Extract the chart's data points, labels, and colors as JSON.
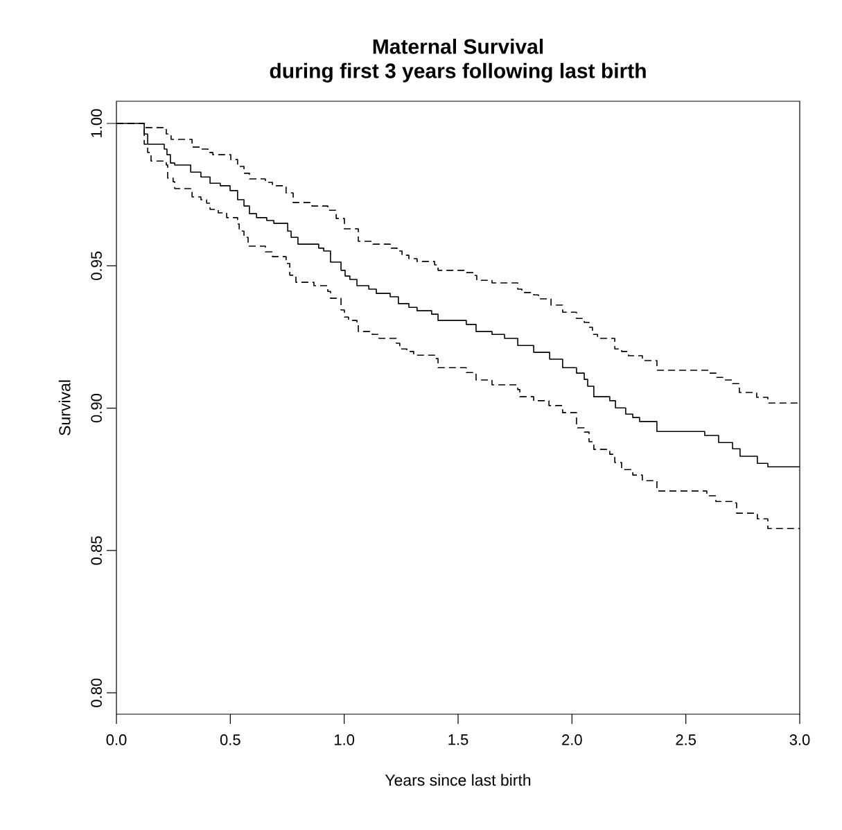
{
  "chart_data": {
    "type": "step",
    "title": "Maternal Survival",
    "subtitle": "during first 3 years following last birth",
    "xlabel": "Years since last birth",
    "ylabel": "Survival",
    "xlim": [
      0,
      3
    ],
    "ylim": [
      0.7925,
      1.0078
    ],
    "xticks": [
      {
        "value": 0,
        "label": "0.0"
      },
      {
        "value": 0.5,
        "label": "0.5"
      },
      {
        "value": 1,
        "label": "1.0"
      },
      {
        "value": 1.5,
        "label": "1.5"
      },
      {
        "value": 2,
        "label": "2.0"
      },
      {
        "value": 2.5,
        "label": "2.5"
      },
      {
        "value": 3,
        "label": "3.0"
      }
    ],
    "yticks": [
      {
        "value": 0.8,
        "label": "0.80"
      },
      {
        "value": 0.85,
        "label": "0.85"
      },
      {
        "value": 0.9,
        "label": "0.90"
      },
      {
        "value": 0.95,
        "label": "0.95"
      },
      {
        "value": 1,
        "label": "1.00"
      }
    ],
    "series": [
      {
        "color": "#000000",
        "line_style": "solid",
        "x": [
          0,
          0.122,
          0.137,
          0.21,
          0.222,
          0.237,
          0.256,
          0.326,
          0.371,
          0.411,
          0.456,
          0.499,
          0.532,
          0.56,
          0.584,
          0.615,
          0.66,
          0.691,
          0.752,
          0.767,
          0.797,
          0.888,
          0.91,
          0.94,
          0.986,
          1.004,
          1.025,
          1.056,
          1.108,
          1.141,
          1.202,
          1.238,
          1.284,
          1.32,
          1.384,
          1.412,
          1.536,
          1.579,
          1.649,
          1.704,
          1.762,
          1.832,
          1.902,
          1.959,
          2.02,
          2.054,
          2.069,
          2.096,
          2.166,
          2.191,
          2.236,
          2.267,
          2.297,
          2.373,
          2.583,
          2.644,
          2.705,
          2.738,
          2.814,
          2.86,
          3.0
        ],
        "values": [
          1.0,
          0.9963,
          0.9927,
          0.991,
          0.989,
          0.9861,
          0.9854,
          0.9829,
          0.9812,
          0.979,
          0.9781,
          0.9764,
          0.9732,
          0.971,
          0.9683,
          0.9669,
          0.9659,
          0.9649,
          0.9622,
          0.96,
          0.9576,
          0.9562,
          0.9552,
          0.9513,
          0.9484,
          0.9464,
          0.9452,
          0.943,
          0.9418,
          0.9403,
          0.9391,
          0.9367,
          0.9354,
          0.9342,
          0.933,
          0.9308,
          0.9294,
          0.9269,
          0.9259,
          0.9245,
          0.922,
          0.9196,
          0.9172,
          0.9142,
          0.9123,
          0.9101,
          0.9077,
          0.904,
          0.9026,
          0.9001,
          0.8979,
          0.8967,
          0.8953,
          0.8918,
          0.8904,
          0.8879,
          0.8857,
          0.8831,
          0.8806,
          0.8794,
          0.8794
        ]
      },
      {
        "color": "#000000",
        "line_style": "dashed",
        "x": [
          0,
          0.122,
          0.219,
          0.24,
          0.332,
          0.371,
          0.402,
          0.423,
          0.502,
          0.532,
          0.56,
          0.584,
          0.654,
          0.685,
          0.745,
          0.776,
          0.858,
          0.928,
          0.965,
          1.001,
          1.062,
          1.126,
          1.202,
          1.232,
          1.254,
          1.284,
          1.32,
          1.397,
          1.412,
          1.536,
          1.567,
          1.582,
          1.649,
          1.762,
          1.78,
          1.832,
          1.853,
          1.908,
          1.959,
          2.02,
          2.054,
          2.075,
          2.09,
          2.112,
          2.188,
          2.218,
          2.248,
          2.309,
          2.373,
          2.601,
          2.632,
          2.662,
          2.705,
          2.735,
          2.811,
          2.86,
          3.0
        ],
        "values": [
          1.0,
          0.9985,
          0.9963,
          0.9944,
          0.9917,
          0.991,
          0.9898,
          0.989,
          0.9873,
          0.9849,
          0.9825,
          0.9805,
          0.9793,
          0.9781,
          0.9756,
          0.9722,
          0.971,
          0.9695,
          0.9666,
          0.963,
          0.9586,
          0.9576,
          0.9562,
          0.9552,
          0.9537,
          0.9525,
          0.9515,
          0.9503,
          0.9484,
          0.9476,
          0.9466,
          0.9449,
          0.944,
          0.9418,
          0.9406,
          0.9398,
          0.9384,
          0.9362,
          0.9337,
          0.9315,
          0.9301,
          0.9284,
          0.9259,
          0.9245,
          0.9208,
          0.9199,
          0.9184,
          0.9167,
          0.9133,
          0.9123,
          0.9108,
          0.9099,
          0.9086,
          0.9055,
          0.9038,
          0.9018,
          0.9018
        ]
      },
      {
        "color": "#000000",
        "line_style": "dashed",
        "x": [
          0,
          0.122,
          0.137,
          0.152,
          0.219,
          0.225,
          0.249,
          0.256,
          0.326,
          0.332,
          0.371,
          0.396,
          0.411,
          0.447,
          0.484,
          0.532,
          0.539,
          0.56,
          0.578,
          0.654,
          0.685,
          0.745,
          0.761,
          0.788,
          0.867,
          0.928,
          0.94,
          0.986,
          1.001,
          1.019,
          1.056,
          1.062,
          1.123,
          1.153,
          1.229,
          1.244,
          1.275,
          1.305,
          1.397,
          1.412,
          1.536,
          1.579,
          1.649,
          1.762,
          1.771,
          1.832,
          1.899,
          1.959,
          2.02,
          2.054,
          2.075,
          2.096,
          2.166,
          2.188,
          2.218,
          2.267,
          2.309,
          2.373,
          2.592,
          2.632,
          2.705,
          2.723,
          2.814,
          2.86,
          3.0
        ],
        "values": [
          1.0,
          0.9927,
          0.9898,
          0.9868,
          0.9854,
          0.9808,
          0.9795,
          0.9771,
          0.9759,
          0.9742,
          0.9732,
          0.972,
          0.9698,
          0.9686,
          0.9669,
          0.9647,
          0.9622,
          0.96,
          0.9569,
          0.9549,
          0.9532,
          0.9508,
          0.9467,
          0.9442,
          0.943,
          0.941,
          0.9386,
          0.9345,
          0.932,
          0.9308,
          0.9296,
          0.9269,
          0.9259,
          0.9245,
          0.9228,
          0.9208,
          0.9199,
          0.9186,
          0.9174,
          0.9142,
          0.9125,
          0.9099,
          0.9082,
          0.9065,
          0.904,
          0.9026,
          0.9009,
          0.8984,
          0.8931,
          0.8916,
          0.8882,
          0.8855,
          0.8838,
          0.8809,
          0.8784,
          0.8765,
          0.8745,
          0.8709,
          0.8692,
          0.8672,
          0.8667,
          0.8631,
          0.8611,
          0.8577,
          0.8577
        ]
      }
    ]
  }
}
